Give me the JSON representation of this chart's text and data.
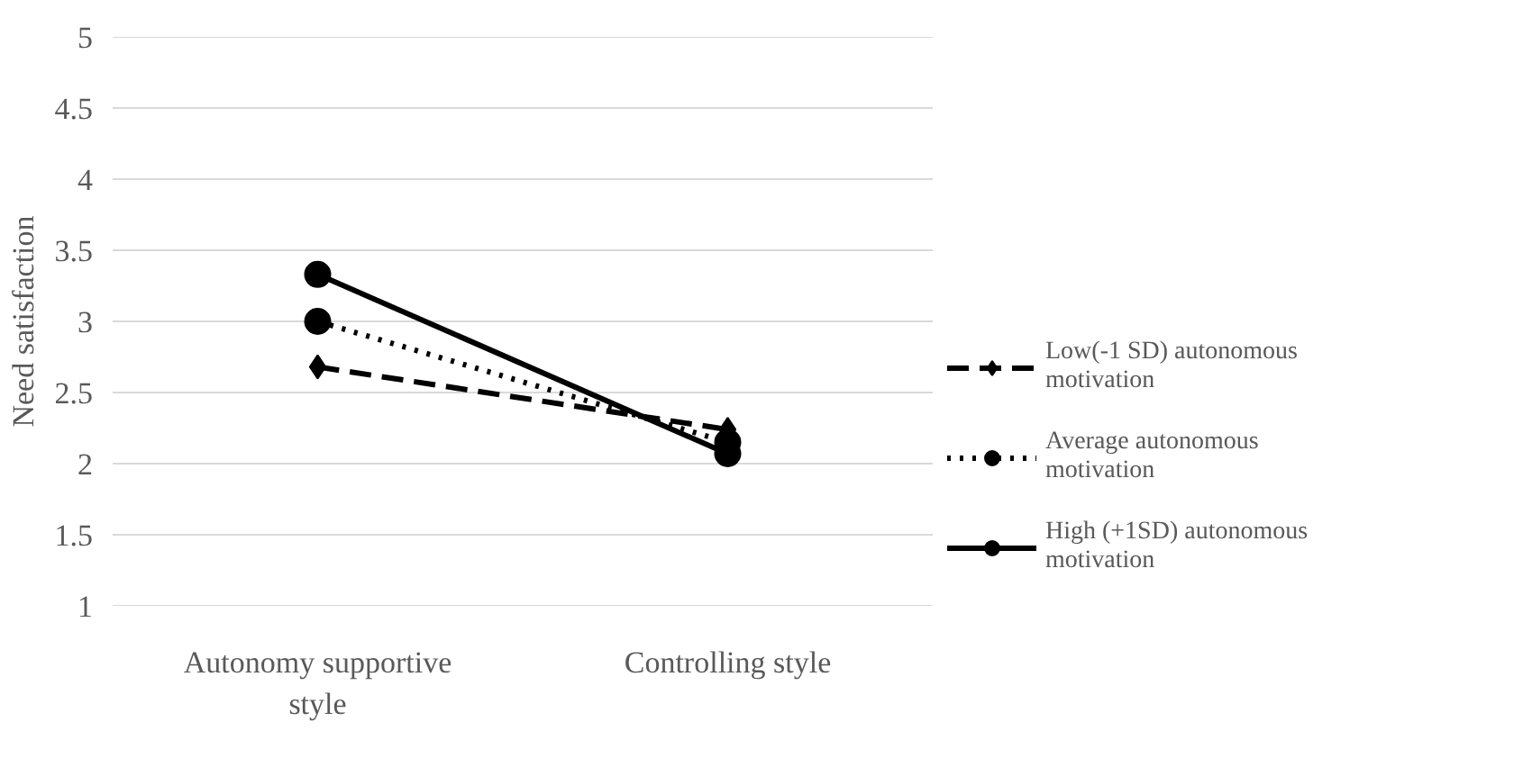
{
  "chart_data": {
    "type": "line",
    "ylabel": "Need satisfaction",
    "categories": [
      "Autonomy supportive\nstyle",
      "Controlling style"
    ],
    "ylim": [
      1,
      5
    ],
    "yticks": [
      1,
      1.5,
      2,
      2.5,
      3,
      3.5,
      4,
      4.5,
      5
    ],
    "grid": "y",
    "legend": "right",
    "series": [
      {
        "name": "Low(-1 SD) autonomous\nmotivation",
        "color": "#000000",
        "values": [
          2.68,
          2.24
        ],
        "marker": "diamond",
        "line_style": "dashed"
      },
      {
        "name": "Average autonomous\nmotivation",
        "color": "#000000",
        "values": [
          3.0,
          2.15
        ],
        "marker": "circle",
        "line_style": "dotted"
      },
      {
        "name": "High (+1SD) autonomous\nmotivation",
        "color": "#000000",
        "values": [
          3.33,
          2.07
        ],
        "marker": "circle",
        "line_style": "solid"
      }
    ]
  }
}
